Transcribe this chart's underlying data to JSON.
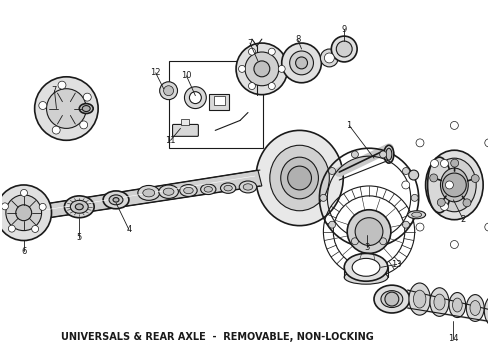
{
  "caption": "UNIVERSALS & REAR AXLE  -  REMOVABLE, NON-LOCKING",
  "bg_color": "#ffffff",
  "fg_color": "#1a1a1a",
  "fig_width": 4.9,
  "fig_height": 3.6,
  "dpi": 100
}
